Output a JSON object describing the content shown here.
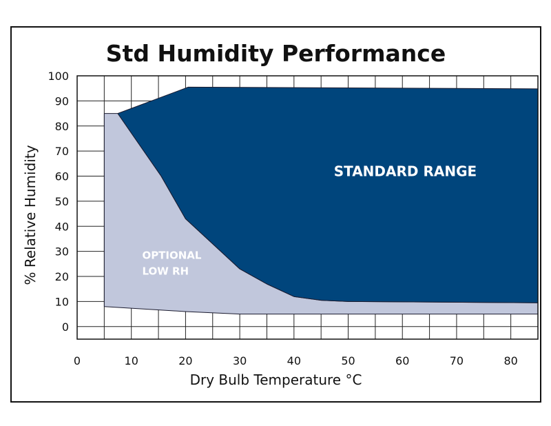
{
  "chart_data": {
    "type": "area",
    "title": "Std Humidity Performance",
    "xlabel": "Dry Bulb Temperature °C",
    "ylabel": "% Relative Humidity",
    "xlim": [
      0,
      85
    ],
    "ylim": [
      -5,
      100
    ],
    "x_ticks": [
      "0",
      "10",
      "20",
      "30",
      "40",
      "50",
      "60",
      "70",
      "80"
    ],
    "y_ticks": [
      "0",
      "10",
      "20",
      "30",
      "40",
      "50",
      "60",
      "70",
      "80",
      "90",
      "100"
    ],
    "grid": true,
    "series": [
      {
        "name": "OPTIONAL LOW RH",
        "color": "#c1c7dc",
        "points": [
          [
            5,
            8
          ],
          [
            20,
            6
          ],
          [
            30,
            5
          ],
          [
            85,
            5
          ],
          [
            85,
            9.5
          ],
          [
            50,
            10
          ],
          [
            45,
            10.5
          ],
          [
            40,
            12
          ],
          [
            35,
            17
          ],
          [
            30,
            23
          ],
          [
            25,
            33
          ],
          [
            20,
            43
          ],
          [
            15.5,
            60
          ],
          [
            7.5,
            85
          ],
          [
            5,
            85
          ]
        ]
      },
      {
        "name": "STANDARD RANGE",
        "color": "#00457c",
        "points": [
          [
            7.5,
            85
          ],
          [
            20.5,
            95.5
          ],
          [
            85,
            94.8
          ],
          [
            85,
            9.5
          ],
          [
            50,
            10
          ],
          [
            45,
            10.5
          ],
          [
            40,
            12
          ],
          [
            35,
            17
          ],
          [
            30,
            23
          ],
          [
            25,
            33
          ],
          [
            20,
            43
          ],
          [
            15.5,
            60
          ]
        ]
      }
    ],
    "region_labels": [
      {
        "lines": [
          "STANDARD RANGE"
        ],
        "x": 43,
        "y": 60,
        "color": "#ffffff"
      },
      {
        "lines": [
          "OPTIONAL",
          "LOW RH"
        ],
        "x": 12,
        "y": 27,
        "color": "#111111"
      }
    ]
  }
}
